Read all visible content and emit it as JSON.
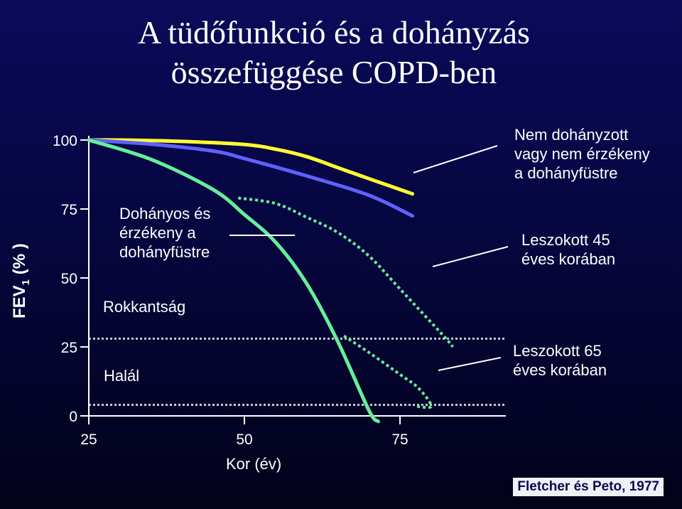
{
  "title_line1": "A tüdőfunkció és a dohányzás",
  "title_line2": "összefüggése COPD-ben",
  "chart_data": {
    "type": "line",
    "title": "A tüdőfunkció és a dohányzás összefüggése COPD-ben",
    "ylabel_main": "FEV",
    "ylabel_sub": "1",
    "ylabel_unit": "(% )",
    "xlabel": "Kor (év)",
    "xlim": [
      25,
      92
    ],
    "ylim": [
      0,
      100
    ],
    "xticks": [
      25,
      50,
      75
    ],
    "yticks": [
      0,
      25,
      50,
      75,
      100
    ],
    "grid": false,
    "series": [
      {
        "name": "Nem dohányzott vagy nem érzékeny a dohányfüstre",
        "color": "#ffff33",
        "style": "solid",
        "x": [
          25,
          30,
          40,
          50,
          55,
          60,
          65,
          70,
          77
        ],
        "y": [
          100,
          100,
          99.5,
          98.4,
          96.7,
          94,
          90,
          86,
          80.5
        ]
      },
      {
        "name": "Dohányos és érzékeny a dohányfüstre, leszokott 45 éves korában",
        "color": "#6060ff",
        "style": "solid",
        "x": [
          25,
          35,
          45,
          50,
          60,
          70,
          77
        ],
        "y": [
          100,
          98.5,
          96,
          93.3,
          87,
          80,
          72.5
        ]
      },
      {
        "name": "Dohányos és érzékeny a dohányfüstre",
        "color": "#66ee99",
        "style": "solid",
        "x": [
          25,
          35,
          45,
          50,
          55,
          60,
          65,
          70,
          71.5
        ],
        "y": [
          100,
          93,
          82,
          73,
          63,
          48,
          27,
          2,
          -2
        ]
      },
      {
        "name": "Leszokott 45 éves korában",
        "color": "#66ee99",
        "style": "dotted",
        "x": [
          49,
          55,
          60,
          65,
          70,
          75,
          82,
          83.5
        ],
        "y": [
          79,
          77,
          72,
          66.5,
          58,
          46,
          29,
          25
        ]
      },
      {
        "name": "Leszokott 65 éves korában",
        "color": "#66ee99",
        "style": "dotted",
        "x": [
          66,
          70,
          75,
          78,
          80,
          77.5
        ],
        "y": [
          29,
          23,
          15,
          10,
          3.5,
          3.5
        ]
      }
    ],
    "thresholds": [
      {
        "label": "Rokkantság",
        "y": 28,
        "style": "dotted"
      },
      {
        "label": "Halál",
        "y": 4,
        "style": "dotted"
      }
    ]
  },
  "annotations": {
    "nonsmoker": [
      "Nem dohányzott",
      "vagy nem érzékeny",
      "a dohányfüstre"
    ],
    "smoker": [
      "Dohányos és",
      "érzékeny a",
      "dohányfüstre"
    ],
    "quit45": [
      "Leszokott 45",
      "éves korában"
    ],
    "quit65": [
      "Leszokott 65",
      "éves korában"
    ],
    "disability": "Rokkantság",
    "death": "Halál"
  },
  "citation": "Fletcher és Peto, 1977",
  "colors": {
    "background": "#060640",
    "nonsmoker": "#ffff33",
    "quit45": "#6060ff",
    "smoker": "#66ee99",
    "text": "#ffffff"
  }
}
